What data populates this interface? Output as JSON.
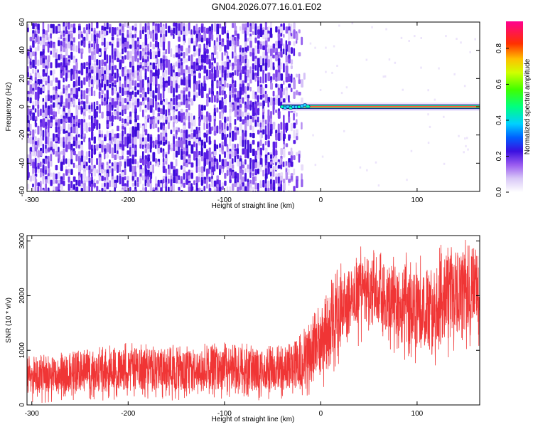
{
  "title": "GN04.2026.077.16.01.E02",
  "chart_data": [
    {
      "type": "heatmap",
      "name": "spectrogram",
      "xlabel": "Height of straight line (km)",
      "ylabel": "Frequency (Hz)",
      "xlim": [
        -305,
        165
      ],
      "ylim": [
        -60,
        60
      ],
      "xticks": [
        -300,
        -200,
        -100,
        0,
        100
      ],
      "yticks": [
        -60,
        -40,
        -20,
        0,
        20,
        40,
        60
      ],
      "colorbar": {
        "label": "Normalized spectral amplitude",
        "range": [
          0.0,
          0.95
        ],
        "ticks": [
          "0.0",
          "0.2",
          "0.4",
          "0.6",
          "0.8"
        ]
      },
      "features": {
        "noise_region_x": [
          -305,
          -35
        ],
        "noise_fade_x": [
          -35,
          -15
        ],
        "signal_start_x": -40,
        "signal_end_x": 165,
        "signal_frequency_hz": 0,
        "signal_amplitude": 0.9
      }
    },
    {
      "type": "line",
      "name": "snr",
      "xlabel": "Height of straight line (km)",
      "ylabel": "SNR (10 * v/v)",
      "xlim": [
        -305,
        165
      ],
      "ylim": [
        0,
        3100
      ],
      "xticks": [
        -300,
        -200,
        -100,
        0,
        100
      ],
      "yticks": [
        0,
        1000,
        2000,
        3000
      ],
      "color": "#f03535",
      "envelope_x": [
        -305,
        -250,
        -200,
        -150,
        -100,
        -60,
        -40,
        -20,
        0,
        20,
        40,
        60,
        80,
        100,
        120,
        140,
        165
      ],
      "envelope_low": [
        200,
        250,
        280,
        260,
        280,
        270,
        270,
        330,
        550,
        1100,
        1450,
        1450,
        1150,
        1000,
        1100,
        1300,
        1500
      ],
      "envelope_high": [
        800,
        950,
        1050,
        1000,
        1050,
        1000,
        1000,
        1250,
        1750,
        2350,
        2650,
        2700,
        2450,
        2400,
        2600,
        2800,
        2950
      ],
      "envelope_min": [
        30,
        60,
        90,
        80,
        90,
        80,
        80,
        140,
        250,
        500,
        1100,
        1100,
        900,
        650,
        700,
        900,
        1050
      ],
      "envelope_max": [
        900,
        1000,
        1150,
        1100,
        1150,
        1100,
        1100,
        1350,
        1850,
        2850,
        2900,
        2900,
        2800,
        2900,
        2950,
        3000,
        3100
      ]
    }
  ]
}
